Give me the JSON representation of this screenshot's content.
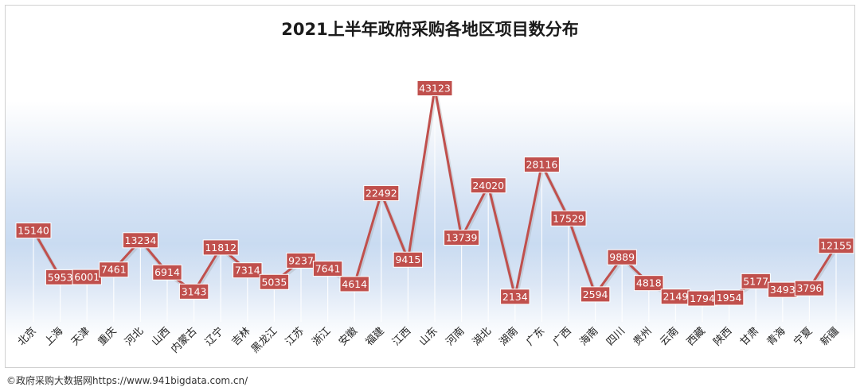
{
  "footer": "©政府采购大数据网https://www.941bigdata.com.cn/",
  "colors": {
    "line": "#c0504d",
    "label_bg": "#c0504d",
    "label_text": "#ffffff",
    "plot_bg": "#cfdff2"
  },
  "chart_data": {
    "type": "line",
    "title": "2021上半年政府采购各地区项目数分布",
    "xlabel": "",
    "ylabel": "",
    "grid": false,
    "legend": "none",
    "ylim": [
      0,
      45000
    ],
    "categories": [
      "北京",
      "上海",
      "天津",
      "重庆",
      "河北",
      "山西",
      "内蒙古",
      "辽宁",
      "吉林",
      "黑龙江",
      "江苏",
      "浙江",
      "安徽",
      "福建",
      "江西",
      "山东",
      "河南",
      "湖北",
      "湖南",
      "广东",
      "广西",
      "海南",
      "四川",
      "贵州",
      "云南",
      "西藏",
      "陕西",
      "甘肃",
      "青海",
      "宁夏",
      "新疆"
    ],
    "series": [
      {
        "values": [
          15140,
          5953,
          6001,
          7461,
          13234,
          6914,
          3143,
          11812,
          7314,
          5035,
          9237,
          7641,
          4614,
          22492,
          9415,
          43123,
          13739,
          24020,
          2134,
          28116,
          17529,
          2594,
          9889,
          4818,
          2149,
          1794,
          1954,
          5177,
          3493,
          3796,
          12155
        ]
      }
    ]
  }
}
